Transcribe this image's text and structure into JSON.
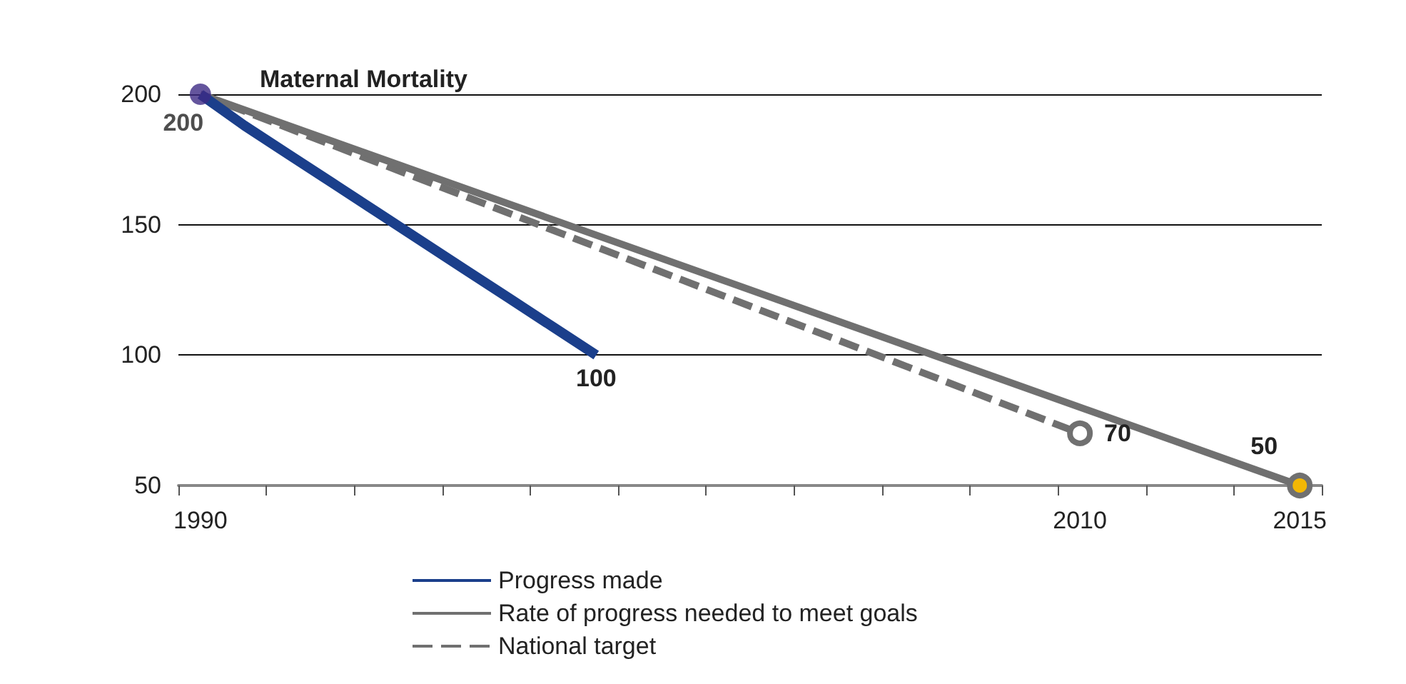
{
  "chart_data": {
    "type": "line",
    "title": "Maternal Mortality",
    "xlim": [
      1989.5,
      2015.5
    ],
    "xticks": [
      {
        "value": 1989.5,
        "label": null
      },
      {
        "value": 1990,
        "label": "1990"
      },
      {
        "value": 1991.5,
        "label": null
      },
      {
        "value": 1993.5,
        "label": null
      },
      {
        "value": 1995.5,
        "label": null
      },
      {
        "value": 1997.5,
        "label": null
      },
      {
        "value": 1999.5,
        "label": null
      },
      {
        "value": 2001.5,
        "label": null
      },
      {
        "value": 2003.5,
        "label": null
      },
      {
        "value": 2005.5,
        "label": null
      },
      {
        "value": 2007.5,
        "label": null
      },
      {
        "value": 2009.5,
        "label": null
      },
      {
        "value": 2010,
        "label": "2010"
      },
      {
        "value": 2011.5,
        "label": null
      },
      {
        "value": 2013.5,
        "label": null
      },
      {
        "value": 2015,
        "label": "2015"
      },
      {
        "value": 2015.5,
        "label": null
      }
    ],
    "ylim": [
      50,
      200
    ],
    "yticks": [
      50,
      100,
      150,
      200
    ],
    "grid": "y",
    "legend": "bottom",
    "series": [
      {
        "name": "Progress made",
        "color": "#1b3f8b",
        "line_style": "solid",
        "x": [
          1990,
          1991,
          1992,
          1993,
          1994,
          1995,
          1996,
          1997,
          1998,
          1999
        ],
        "values": [
          200,
          188,
          177,
          166,
          155,
          144,
          133,
          122,
          111,
          100
        ],
        "marker": "none",
        "value_labels": [
          null,
          null,
          null,
          null,
          null,
          null,
          null,
          null,
          null,
          "100"
        ]
      },
      {
        "name": "Rate of progress needed to meet goals",
        "color": "#707070",
        "line_style": "solid",
        "x": [
          1990,
          2015
        ],
        "values": [
          200,
          50
        ],
        "marker": "circle",
        "colors": [
          null,
          "#f2b705"
        ],
        "value_labels": [
          null,
          "50"
        ]
      },
      {
        "name": "National target",
        "color": "#707070",
        "line_style": "dashed",
        "x": [
          1990,
          2010
        ],
        "values": [
          200,
          70
        ],
        "marker": "circle",
        "colors": [
          null,
          "#ffffff"
        ],
        "value_labels": [
          null,
          "70"
        ]
      },
      {
        "type": "scatter",
        "color": "#3d2a85",
        "marker": "circle",
        "x": [
          1990
        ],
        "values": [
          200
        ],
        "value_labels": [
          "200"
        ]
      }
    ]
  }
}
